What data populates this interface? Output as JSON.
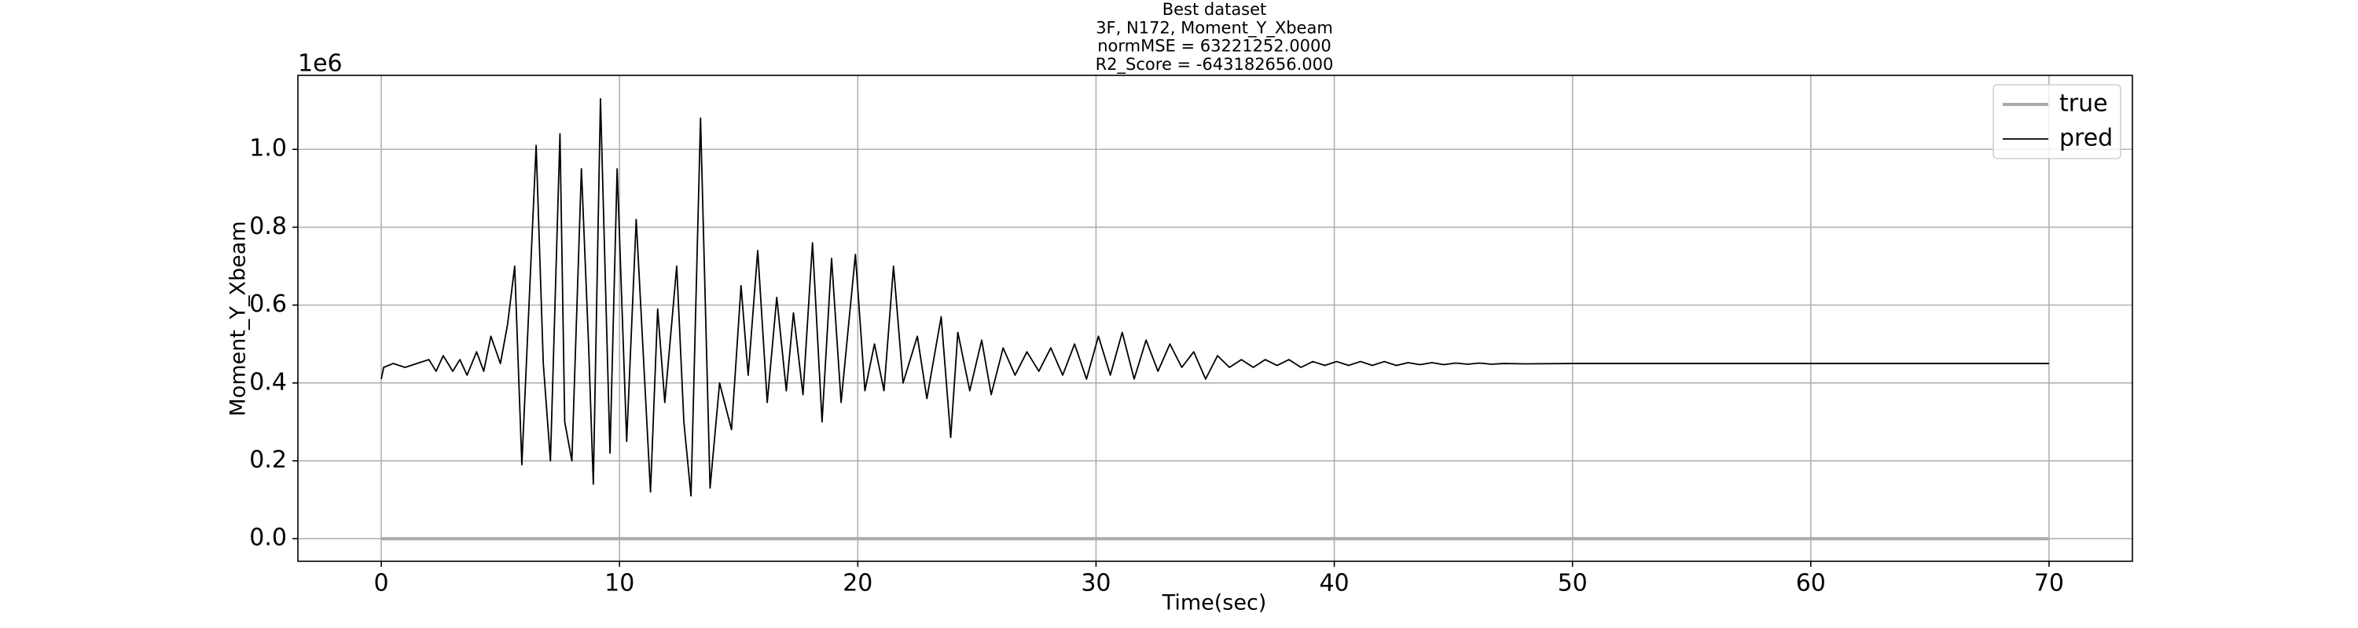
{
  "chart_data": {
    "type": "line",
    "title": [
      "Best dataset",
      "3F, N172, Moment_Y_Xbeam",
      "normMSE = 63221252.0000",
      "R2_Score = -643182656.000"
    ],
    "xlabel": "Time(sec)",
    "ylabel": "Moment_Y_Xbeam",
    "y_offset_label": "1e6",
    "xlim": [
      -3.5,
      73.5
    ],
    "ylim": [
      -0.058,
      1.19
    ],
    "xticks": [
      0,
      10,
      20,
      30,
      40,
      50,
      60,
      70
    ],
    "yticks": [
      {
        "value": 0,
        "label": "0.0"
      },
      {
        "value": 0.2,
        "label": "0.2"
      },
      {
        "value": 0.4,
        "label": "0.4"
      },
      {
        "value": 0.6,
        "label": "0.6"
      },
      {
        "value": 0.8,
        "label": "0.8"
      },
      {
        "value": 1.0,
        "label": "1.0"
      }
    ],
    "grid": true,
    "legend": "upper right",
    "series": [
      {
        "name": "true",
        "color": "#aaaaaa",
        "x": [
          0,
          70
        ],
        "values": [
          0,
          0
        ]
      },
      {
        "name": "pred",
        "color": "#000000",
        "x": [
          0,
          0.1,
          0.5,
          1,
          1.5,
          2,
          2.3,
          2.6,
          3,
          3.3,
          3.6,
          4,
          4.3,
          4.6,
          5,
          5.3,
          5.6,
          5.9,
          6.5,
          6.8,
          7.1,
          7.5,
          7.7,
          8.0,
          8.4,
          8.7,
          8.9,
          9.2,
          9.6,
          9.9,
          10.3,
          10.7,
          11.3,
          11.6,
          11.9,
          12.4,
          12.7,
          13.0,
          13.4,
          13.8,
          14.2,
          14.7,
          15.1,
          15.4,
          15.8,
          16.2,
          16.6,
          17.0,
          17.3,
          17.7,
          18.1,
          18.5,
          18.9,
          19.3,
          19.9,
          20.3,
          20.7,
          21.1,
          21.5,
          21.9,
          22.5,
          22.9,
          23.5,
          23.9,
          24.2,
          24.7,
          25.2,
          25.6,
          26.1,
          26.6,
          27.1,
          27.6,
          28.1,
          28.6,
          29.1,
          29.6,
          30.1,
          30.6,
          31.1,
          31.6,
          32.1,
          32.6,
          33.1,
          33.6,
          34.1,
          34.6,
          35.1,
          35.6,
          36.1,
          36.6,
          37.1,
          37.6,
          38.1,
          38.6,
          39.1,
          39.6,
          40.1,
          40.6,
          41.1,
          41.6,
          42.1,
          42.6,
          43.1,
          43.6,
          44.1,
          44.6,
          45.1,
          45.6,
          46.1,
          46.6,
          47.1,
          48,
          50,
          70
        ],
        "values": [
          0.41,
          0.44,
          0.45,
          0.44,
          0.45,
          0.46,
          0.43,
          0.47,
          0.43,
          0.46,
          0.42,
          0.48,
          0.43,
          0.52,
          0.45,
          0.55,
          0.7,
          0.19,
          1.01,
          0.45,
          0.2,
          1.04,
          0.3,
          0.2,
          0.95,
          0.5,
          0.14,
          1.13,
          0.22,
          0.95,
          0.25,
          0.82,
          0.12,
          0.59,
          0.35,
          0.7,
          0.3,
          0.11,
          1.08,
          0.13,
          0.4,
          0.28,
          0.65,
          0.42,
          0.74,
          0.35,
          0.62,
          0.38,
          0.58,
          0.37,
          0.76,
          0.3,
          0.72,
          0.35,
          0.73,
          0.38,
          0.5,
          0.38,
          0.7,
          0.4,
          0.52,
          0.36,
          0.57,
          0.26,
          0.53,
          0.38,
          0.51,
          0.37,
          0.49,
          0.42,
          0.48,
          0.43,
          0.49,
          0.42,
          0.5,
          0.41,
          0.52,
          0.42,
          0.53,
          0.41,
          0.51,
          0.43,
          0.5,
          0.44,
          0.48,
          0.41,
          0.47,
          0.44,
          0.46,
          0.44,
          0.46,
          0.445,
          0.46,
          0.44,
          0.455,
          0.445,
          0.455,
          0.445,
          0.455,
          0.445,
          0.455,
          0.445,
          0.452,
          0.447,
          0.452,
          0.447,
          0.451,
          0.448,
          0.451,
          0.448,
          0.45,
          0.449,
          0.45,
          0.45
        ]
      }
    ]
  }
}
